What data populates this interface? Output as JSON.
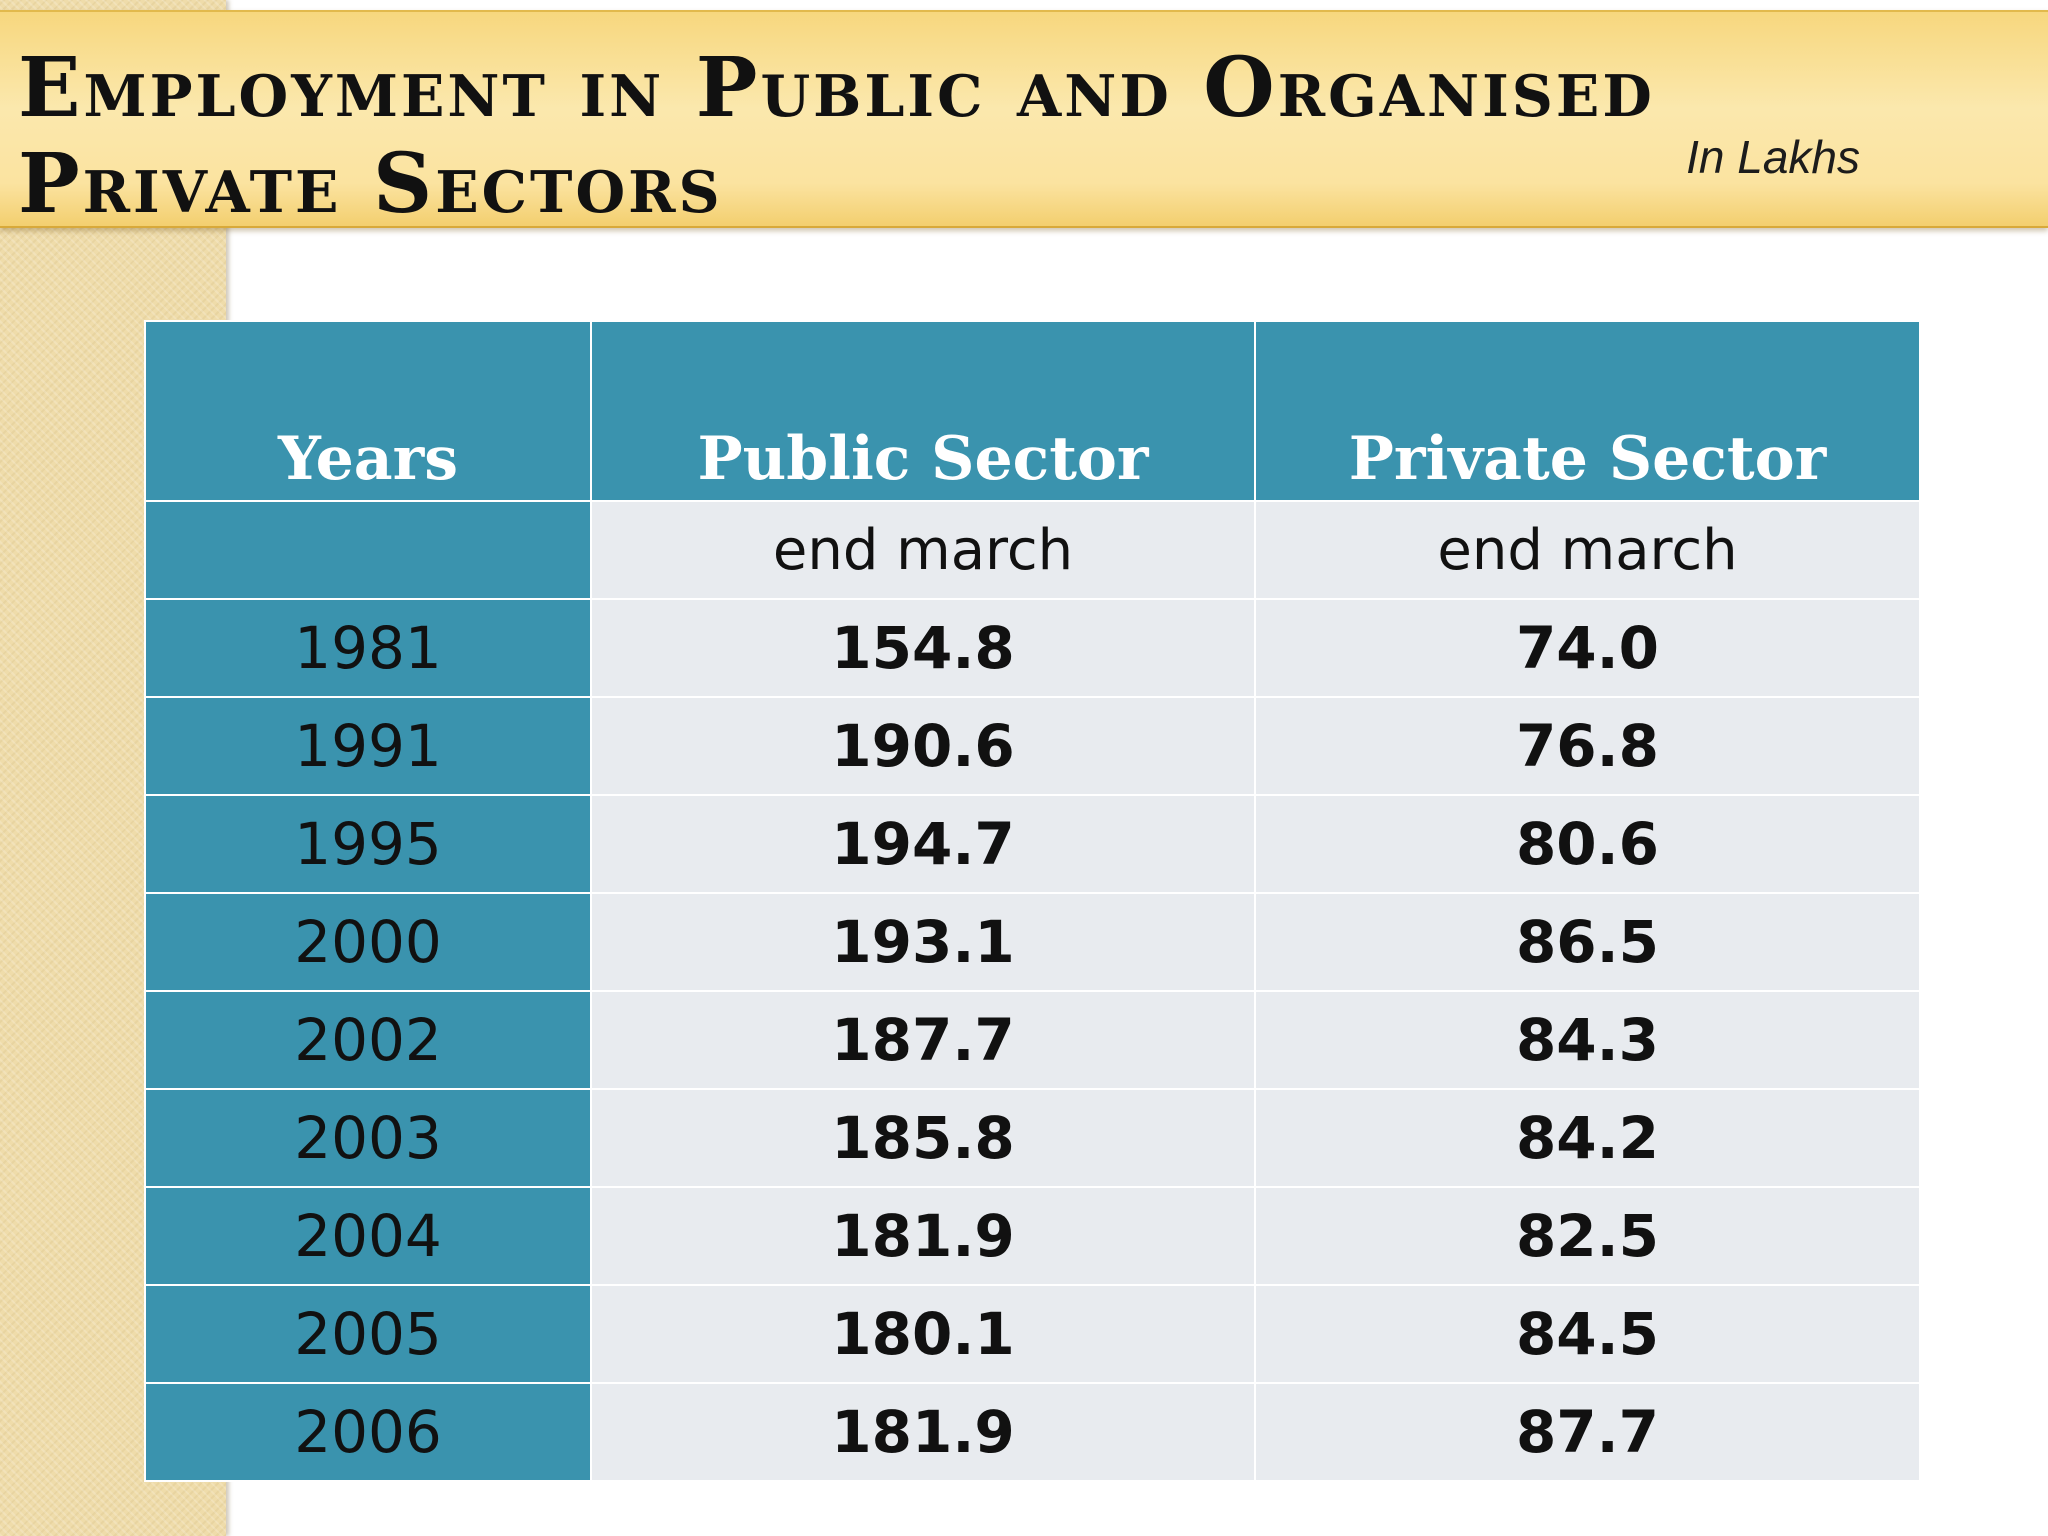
{
  "slide": {
    "title": "Employment in Public and Organised Private Sectors",
    "units_note": "In Lakhs"
  },
  "table": {
    "headers": [
      "Years",
      "Public Sector",
      "Private Sector"
    ],
    "subheader": [
      "",
      "end march",
      "end march"
    ],
    "rows": [
      {
        "year": "1981",
        "public": "154.8",
        "private": "74.0"
      },
      {
        "year": "1991",
        "public": "190.6",
        "private": "76.8"
      },
      {
        "year": "1995",
        "public": "194.7",
        "private": "80.6"
      },
      {
        "year": "2000",
        "public": "193.1",
        "private": "86.5"
      },
      {
        "year": "2002",
        "public": "187.7",
        "private": "84.3"
      },
      {
        "year": "2003",
        "public": "185.8",
        "private": "84.2"
      },
      {
        "year": "2004",
        "public": "181.9",
        "private": "82.5"
      },
      {
        "year": "2005",
        "public": "180.1",
        "private": "84.5"
      },
      {
        "year": "2006",
        "public": "181.9",
        "private": "87.7"
      }
    ]
  },
  "colors": {
    "header_teal": "#3a93ae",
    "cell_gray": "#e8ebef",
    "banner_gold": "#fbe3a0",
    "side_strip": "#efdcaa"
  }
}
